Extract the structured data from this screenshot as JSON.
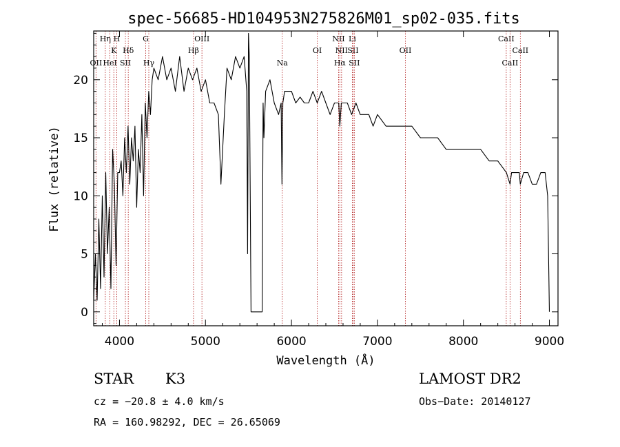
{
  "chart_data": {
    "type": "line",
    "title": "spec-56685-HD104953N275826M01_sp02-035.fits",
    "xlabel": "Wavelength (Å)",
    "ylabel": "Flux (relative)",
    "xlim": [
      3700,
      9100
    ],
    "ylim": [
      -1.2,
      24.2
    ],
    "x_ticks": [
      4000,
      5000,
      6000,
      7000,
      8000,
      9000
    ],
    "y_ticks": [
      0,
      5,
      10,
      15,
      20
    ],
    "grid": false,
    "series": [
      {
        "x": [
          3700,
          3720,
          3740,
          3760,
          3780,
          3800,
          3820,
          3840,
          3860,
          3880,
          3900,
          3920,
          3940,
          3960,
          3980,
          4000,
          4020,
          4040,
          4060,
          4080,
          4100,
          4120,
          4140,
          4160,
          4180,
          4200,
          4220,
          4240,
          4260,
          4280,
          4300,
          4320,
          4340,
          4360,
          4380,
          4400,
          4450,
          4500,
          4550,
          4600,
          4650,
          4700,
          4750,
          4800,
          4850,
          4900,
          4950,
          5000,
          5050,
          5100,
          5150,
          5170,
          5180,
          5200,
          5220,
          5250,
          5300,
          5350,
          5400,
          5450,
          5480,
          5490,
          5500,
          5510,
          5530,
          5600,
          5660,
          5670,
          5680,
          5700,
          5750,
          5800,
          5850,
          5880,
          5890,
          5900,
          5920,
          5950,
          6000,
          6050,
          6100,
          6150,
          6200,
          6250,
          6300,
          6350,
          6400,
          6450,
          6500,
          6550,
          6563,
          6580,
          6600,
          6650,
          6700,
          6750,
          6800,
          6850,
          6900,
          6950,
          7000,
          7100,
          7200,
          7300,
          7400,
          7500,
          7600,
          7700,
          7800,
          7900,
          8000,
          8100,
          8200,
          8300,
          8400,
          8500,
          8542,
          8560,
          8600,
          8650,
          8662,
          8700,
          8750,
          8800,
          8850,
          8900,
          8950,
          8980,
          9000
        ],
        "y": [
          1,
          5,
          1,
          8,
          2,
          10,
          3,
          12,
          5,
          9,
          2,
          14,
          11,
          4,
          12,
          12,
          13,
          10,
          15,
          12,
          16,
          11,
          15,
          13,
          16,
          9,
          14,
          12,
          17,
          10,
          18,
          15,
          19,
          17,
          20,
          21,
          20,
          22,
          20,
          21,
          19,
          22,
          19,
          21,
          20,
          21,
          19,
          20,
          18,
          18,
          17,
          13,
          11,
          14,
          17,
          21,
          20,
          22,
          21,
          22,
          19,
          5,
          24,
          22,
          0,
          0,
          0,
          18,
          15,
          19,
          20,
          18,
          17,
          18,
          11,
          18,
          19,
          19,
          19,
          18,
          18.5,
          18,
          18,
          19,
          18,
          19,
          18,
          17,
          18,
          18,
          16,
          18,
          18,
          18,
          17,
          18,
          17,
          17,
          17,
          16,
          17,
          16,
          16,
          16,
          16,
          15,
          15,
          15,
          14,
          14,
          14,
          14,
          14,
          13,
          13,
          12,
          11,
          12,
          12,
          12,
          11,
          12,
          12,
          11,
          11,
          12,
          12,
          10,
          0
        ]
      }
    ],
    "line_markers": [
      {
        "label": "OII",
        "x": 3727,
        "row": 3
      },
      {
        "label": "Hη",
        "x": 3835,
        "row": 0
      },
      {
        "label": "HeI",
        "x": 3889,
        "row": 3
      },
      {
        "label": "H",
        "x": 3968,
        "row": 0
      },
      {
        "label": "K",
        "x": 3934,
        "row": 1
      },
      {
        "label": "SII",
        "x": 4069,
        "row": 3
      },
      {
        "label": "Hδ",
        "x": 4102,
        "row": 1
      },
      {
        "label": "G",
        "x": 4305,
        "row": 0
      },
      {
        "label": "Hγ",
        "x": 4341,
        "row": 2
      },
      {
        "label": "OIII",
        "x": 4959,
        "row": 0
      },
      {
        "label": "Hβ",
        "x": 4861,
        "row": 1
      },
      {
        "label": "Na",
        "x": 5893,
        "row": 2
      },
      {
        "label": "OI",
        "x": 6300,
        "row": 1
      },
      {
        "label": "NII",
        "x": 6548,
        "row": 0
      },
      {
        "label": "Li",
        "x": 6708,
        "row": 0
      },
      {
        "label": "NII",
        "x": 6583,
        "row": 1
      },
      {
        "label": "SII",
        "x": 6716,
        "row": 1
      },
      {
        "label": "Hα",
        "x": 6563,
        "row": 2
      },
      {
        "label": "SII",
        "x": 6731,
        "row": 2
      },
      {
        "label": "OII",
        "x": 7325,
        "row": 1
      },
      {
        "label": "CaII",
        "x": 8498,
        "row": 0
      },
      {
        "label": "CaII",
        "x": 8542,
        "row": 2
      },
      {
        "label": "CaII",
        "x": 8662,
        "row": 1
      }
    ]
  },
  "info": {
    "object_class": "STAR",
    "subclass": "K3",
    "survey": "LAMOST DR2",
    "velocity": "cz = −20.8 ± 4.0 km/s",
    "obs_date": "Obs−Date: 20140127",
    "coords": "RA = 160.98292, DEC =  26.65069"
  }
}
